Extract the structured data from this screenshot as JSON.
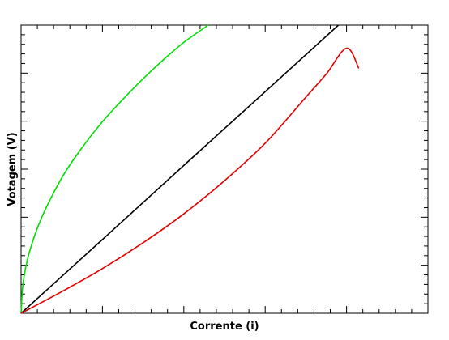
{
  "chart_data": {
    "type": "line",
    "title": "",
    "xlabel": "Corrente (i)",
    "ylabel": "Votagem (V)",
    "xlim": [
      0,
      10
    ],
    "ylim": [
      0,
      10
    ],
    "grid": false,
    "legend": "none",
    "tick_labels": "none",
    "series": [
      {
        "color": "#00e000",
        "x": [
          0,
          0.05,
          0.2,
          0.5,
          1.0,
          1.5,
          2.0,
          2.5,
          3.0,
          3.5,
          4.0,
          4.6
        ],
        "y": [
          0,
          1.05,
          2.1,
          3.3,
          4.7,
          5.75,
          6.65,
          7.42,
          8.14,
          8.8,
          9.4,
          10.0
        ]
      },
      {
        "color": "#000000",
        "x": [
          0,
          2,
          4,
          6,
          7.8
        ],
        "y": [
          0,
          2.56,
          5.13,
          7.69,
          10.0
        ]
      },
      {
        "color": "#e00000",
        "x": [
          0,
          1,
          2,
          3,
          4,
          5,
          6,
          7,
          7.5,
          8,
          8.3
        ],
        "y": [
          0,
          0.75,
          1.55,
          2.45,
          3.45,
          4.6,
          5.9,
          7.5,
          8.3,
          9.2,
          8.5
        ]
      }
    ]
  }
}
